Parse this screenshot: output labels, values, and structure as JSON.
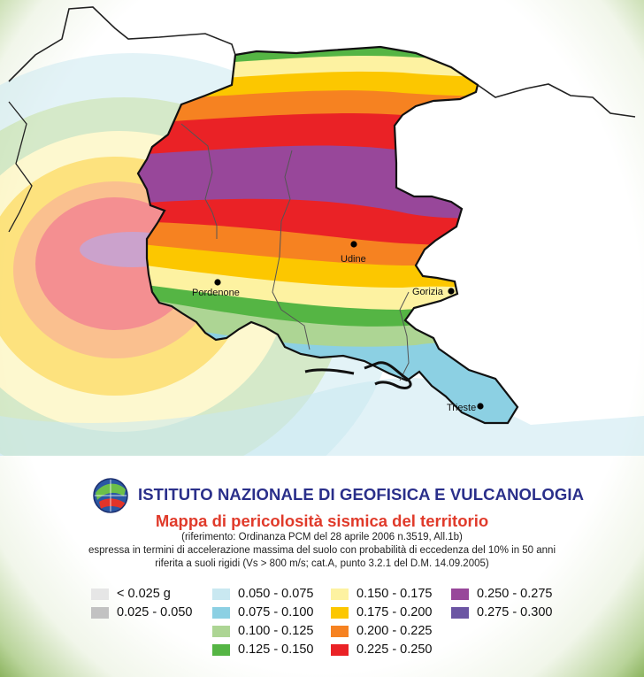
{
  "institute": "ISTITUTO NAZIONALE DI GEOFISICA E VULCANOLOGIA",
  "title": "Mappa di pericolosità sismica del territorio",
  "subtitle_lines": [
    "(riferimento: Ordinanza PCM del 28 aprile 2006 n.3519, All.1b)",
    "espressa in termini di accelerazione massima del suolo con probabilità di eccedenza del 10% in 50 anni",
    "riferita a suoli rigidi (Vs  > 800 m/s; cat.A, punto 3.2.1 del D.M. 14.09.2005)"
  ],
  "cities": [
    {
      "name": "Udine"
    },
    {
      "name": "Pordenone"
    },
    {
      "name": "Gorizia"
    },
    {
      "name": "Trieste"
    }
  ],
  "legend": [
    {
      "label": "< 0.025 g",
      "color": "#e6e6e6"
    },
    {
      "label": "0.025 - 0.050",
      "color": "#c2c2c2"
    },
    {
      "label": "0.050 - 0.075",
      "color": "#c9e8f1"
    },
    {
      "label": "0.075 - 0.100",
      "color": "#8cd0e3"
    },
    {
      "label": "0.100 - 0.125",
      "color": "#add594"
    },
    {
      "label": "0.125 - 0.150",
      "color": "#55b544"
    },
    {
      "label": "0.150 - 0.175",
      "color": "#fdf2a1"
    },
    {
      "label": "0.175 - 0.200",
      "color": "#fcc700"
    },
    {
      "label": "0.200 - 0.225",
      "color": "#f68221"
    },
    {
      "label": "0.225 - 0.250",
      "color": "#ea2226"
    },
    {
      "label": "0.250 - 0.275",
      "color": "#98479a"
    },
    {
      "label": "0.275 - 0.300",
      "color": "#6b55a3"
    }
  ]
}
